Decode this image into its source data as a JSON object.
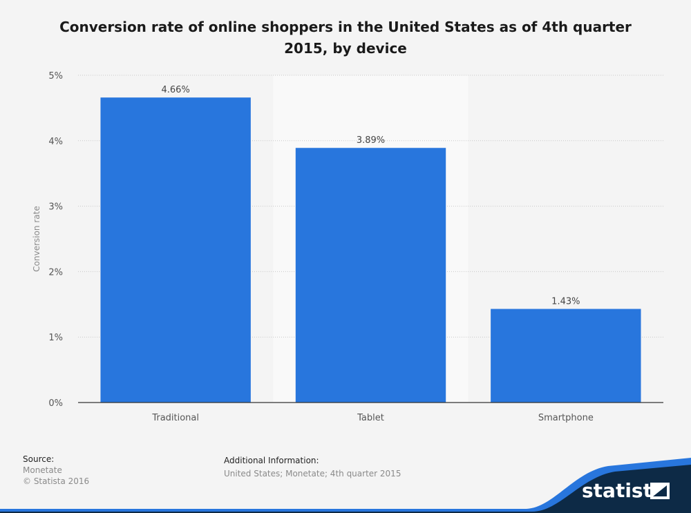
{
  "chart_data": {
    "type": "bar",
    "title": "Conversion rate of online shoppers in the United States as of 4th quarter 2015, by device",
    "categories": [
      "Traditional",
      "Tablet",
      "Smartphone"
    ],
    "values": [
      4.66,
      3.89,
      1.43
    ],
    "value_labels": [
      "4.66%",
      "3.89%",
      "1.43%"
    ],
    "ylabel": "Conversion rate",
    "ylim": [
      0,
      5
    ],
    "yticks": [
      0,
      1,
      2,
      3,
      4,
      5
    ],
    "ytick_labels": [
      "0%",
      "1%",
      "2%",
      "3%",
      "4%",
      "5%"
    ],
    "grid": true,
    "bar_color": "#2876dd"
  },
  "footer": {
    "source_label": "Source:",
    "source_lines": [
      "Monetate",
      "© Statista 2016"
    ],
    "additional_label": "Additional Information:",
    "additional_text": "United States; Monetate; 4th quarter 2015"
  },
  "brand": {
    "logo_text": "statista",
    "colors": {
      "dark": "#0d2a46",
      "accent": "#2876dd"
    }
  }
}
